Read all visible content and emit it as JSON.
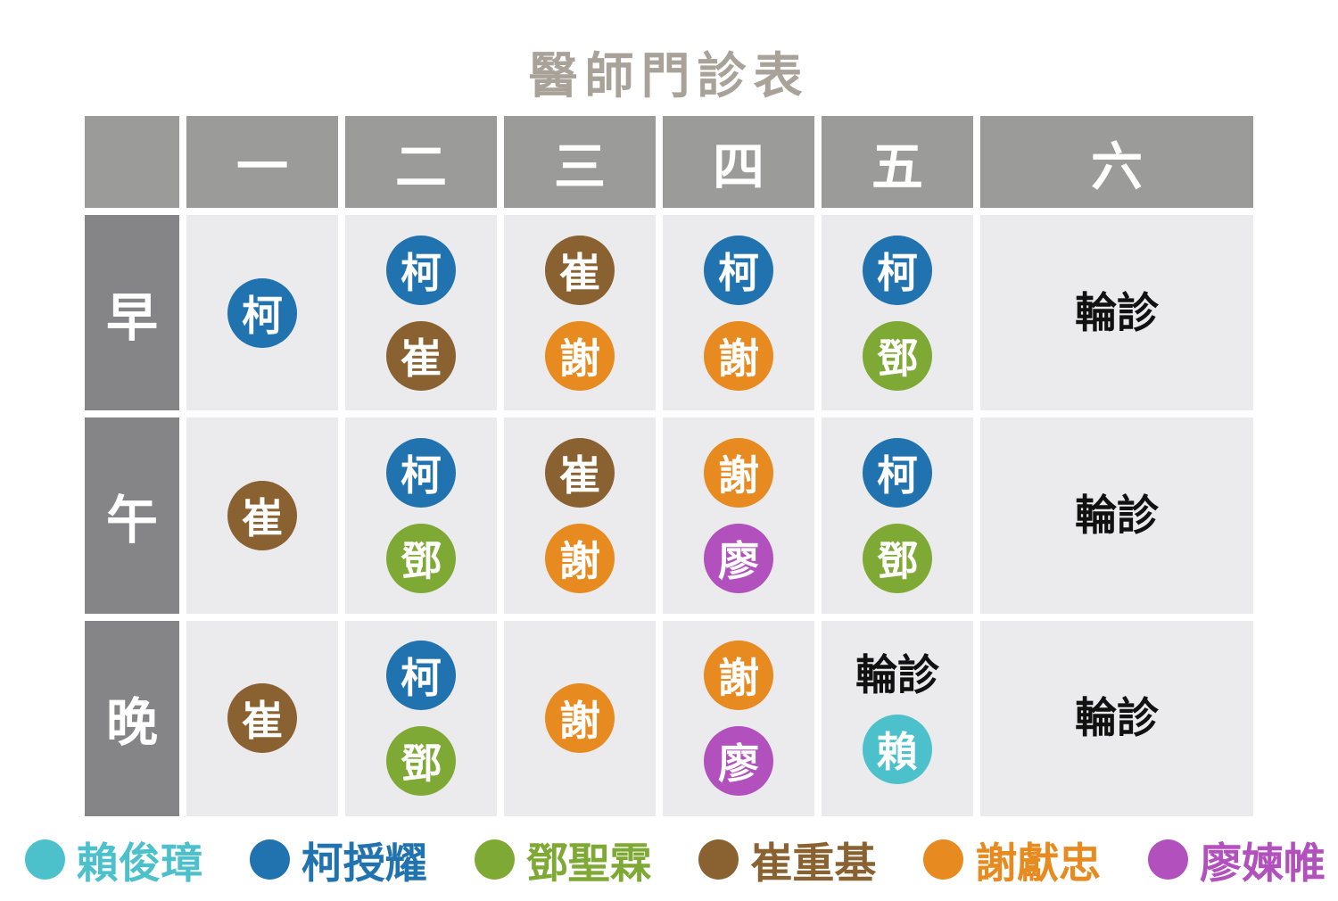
{
  "title": "醫師門診表",
  "rotation_label": "輪診",
  "colors": {
    "page_bg": "#FFFFFF",
    "title_text": "#A9A299",
    "header_bg": "#9B9B99",
    "header_text": "#FFFFFF",
    "row_label_bg": "#858587",
    "row_label_text": "#FFFFFF",
    "cell_bg": "#EBEBED",
    "rotation_text": "#111111",
    "circle_text": "#FFFFFF"
  },
  "doctors": {
    "lai": {
      "surname": "賴",
      "full_name": "賴俊璋",
      "color": "#4DC1CB"
    },
    "ke": {
      "surname": "柯",
      "full_name": "柯授耀",
      "color": "#2173AF"
    },
    "deng": {
      "surname": "鄧",
      "full_name": "鄧聖霖",
      "color": "#7FA935"
    },
    "cui": {
      "surname": "崔",
      "full_name": "崔重基",
      "color": "#8A6231"
    },
    "xie": {
      "surname": "謝",
      "full_name": "謝獻忠",
      "color": "#E78A1F"
    },
    "liao": {
      "surname": "廖",
      "full_name": "廖媡帷",
      "color": "#B250BD"
    }
  },
  "legend_order": [
    "lai",
    "ke",
    "deng",
    "cui",
    "xie",
    "liao"
  ],
  "table": {
    "columns": [
      "一",
      "二",
      "三",
      "四",
      "五",
      "六"
    ],
    "rows": [
      {
        "label": "早",
        "cells": [
          {
            "doctors": [
              "ke"
            ]
          },
          {
            "doctors": [
              "ke",
              "cui"
            ]
          },
          {
            "doctors": [
              "cui",
              "xie"
            ]
          },
          {
            "doctors": [
              "ke",
              "xie"
            ]
          },
          {
            "doctors": [
              "ke",
              "deng"
            ]
          },
          {
            "text": "輪診"
          }
        ]
      },
      {
        "label": "午",
        "cells": [
          {
            "doctors": [
              "cui"
            ]
          },
          {
            "doctors": [
              "ke",
              "deng"
            ]
          },
          {
            "doctors": [
              "cui",
              "xie"
            ]
          },
          {
            "doctors": [
              "xie",
              "liao"
            ]
          },
          {
            "doctors": [
              "ke",
              "deng"
            ]
          },
          {
            "text": "輪診"
          }
        ]
      },
      {
        "label": "晚",
        "cells": [
          {
            "doctors": [
              "cui"
            ]
          },
          {
            "doctors": [
              "ke",
              "deng"
            ]
          },
          {
            "doctors": [
              "xie"
            ]
          },
          {
            "doctors": [
              "xie",
              "liao"
            ]
          },
          {
            "text": "輪診",
            "doctors": [
              "lai"
            ]
          },
          {
            "text": "輪診"
          }
        ]
      }
    ]
  },
  "chart_data": {
    "type": "table",
    "title": "醫師門診表",
    "columns": [
      "一",
      "二",
      "三",
      "四",
      "五",
      "六"
    ],
    "row_labels": [
      "早",
      "午",
      "晚"
    ],
    "cells": [
      [
        "柯",
        "柯/崔",
        "崔/謝",
        "柯/謝",
        "柯/鄧",
        "輪診"
      ],
      [
        "崔",
        "柯/鄧",
        "崔/謝",
        "謝/廖",
        "柯/鄧",
        "輪診"
      ],
      [
        "崔",
        "柯/鄧",
        "謝",
        "謝/廖",
        "輪診/賴",
        "輪診"
      ]
    ],
    "legend": [
      {
        "label": "賴俊璋",
        "color": "#4DC1CB"
      },
      {
        "label": "柯授耀",
        "color": "#2173AF"
      },
      {
        "label": "鄧聖霖",
        "color": "#7FA935"
      },
      {
        "label": "崔重基",
        "color": "#8A6231"
      },
      {
        "label": "謝獻忠",
        "color": "#E78A1F"
      },
      {
        "label": "廖媡帷",
        "color": "#B250BD"
      }
    ],
    "layout": {
      "grid": "on",
      "legend_position": "bottom",
      "wide_last_column": true
    }
  }
}
